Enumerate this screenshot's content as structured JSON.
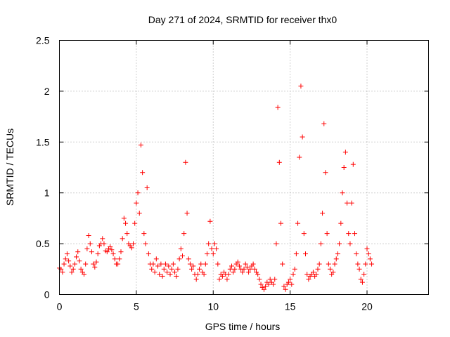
{
  "chart_data": {
    "type": "scatter",
    "title": "Day 271 of 2024, SRMTID for receiver thx0",
    "xlabel": "GPS time / hours",
    "ylabel": "SRMTID / TECUs",
    "xlim": [
      0,
      24
    ],
    "ylim": [
      0,
      2.5
    ],
    "xticks": [
      0,
      5,
      10,
      15,
      20
    ],
    "xtick_labels": [
      "0",
      "5",
      "10",
      "15",
      "20"
    ],
    "yticks": [
      0,
      0.5,
      1,
      1.5,
      2,
      2.5
    ],
    "ytick_labels": [
      "0",
      "0.5",
      "1",
      "1.5",
      "2",
      "2.5"
    ],
    "grid": true,
    "marker": "+",
    "color": "#ff0000",
    "series": [
      {
        "name": "SRMTID",
        "points": [
          [
            0.0,
            0.26
          ],
          [
            0.1,
            0.25
          ],
          [
            0.2,
            0.22
          ],
          [
            0.3,
            0.3
          ],
          [
            0.4,
            0.35
          ],
          [
            0.5,
            0.4
          ],
          [
            0.6,
            0.33
          ],
          [
            0.7,
            0.28
          ],
          [
            0.8,
            0.22
          ],
          [
            0.9,
            0.25
          ],
          [
            1.0,
            0.3
          ],
          [
            1.1,
            0.37
          ],
          [
            1.2,
            0.42
          ],
          [
            1.3,
            0.33
          ],
          [
            1.4,
            0.25
          ],
          [
            1.5,
            0.22
          ],
          [
            1.6,
            0.2
          ],
          [
            1.7,
            0.3
          ],
          [
            1.8,
            0.45
          ],
          [
            1.9,
            0.58
          ],
          [
            2.0,
            0.5
          ],
          [
            2.1,
            0.42
          ],
          [
            2.2,
            0.3
          ],
          [
            2.3,
            0.27
          ],
          [
            2.4,
            0.32
          ],
          [
            2.5,
            0.4
          ],
          [
            2.6,
            0.48
          ],
          [
            2.7,
            0.5
          ],
          [
            2.8,
            0.55
          ],
          [
            2.9,
            0.5
          ],
          [
            3.0,
            0.43
          ],
          [
            3.1,
            0.42
          ],
          [
            3.2,
            0.45
          ],
          [
            3.3,
            0.47
          ],
          [
            3.4,
            0.44
          ],
          [
            3.5,
            0.4
          ],
          [
            3.6,
            0.35
          ],
          [
            3.7,
            0.3
          ],
          [
            3.8,
            0.3
          ],
          [
            3.9,
            0.35
          ],
          [
            4.0,
            0.42
          ],
          [
            4.1,
            0.55
          ],
          [
            4.2,
            0.75
          ],
          [
            4.3,
            0.7
          ],
          [
            4.4,
            0.6
          ],
          [
            4.5,
            0.5
          ],
          [
            4.6,
            0.48
          ],
          [
            4.7,
            0.46
          ],
          [
            4.8,
            0.5
          ],
          [
            4.9,
            0.7
          ],
          [
            5.0,
            0.9
          ],
          [
            5.1,
            1.0
          ],
          [
            5.2,
            0.8
          ],
          [
            5.3,
            1.47
          ],
          [
            5.4,
            1.2
          ],
          [
            5.5,
            0.6
          ],
          [
            5.6,
            0.5
          ],
          [
            5.7,
            1.05
          ],
          [
            5.8,
            0.4
          ],
          [
            5.9,
            0.3
          ],
          [
            6.0,
            0.25
          ],
          [
            6.1,
            0.3
          ],
          [
            6.2,
            0.22
          ],
          [
            6.3,
            0.35
          ],
          [
            6.4,
            0.28
          ],
          [
            6.5,
            0.2
          ],
          [
            6.6,
            0.3
          ],
          [
            6.7,
            0.18
          ],
          [
            6.8,
            0.25
          ],
          [
            6.9,
            0.3
          ],
          [
            7.0,
            0.22
          ],
          [
            7.1,
            0.28
          ],
          [
            7.2,
            0.2
          ],
          [
            7.3,
            0.25
          ],
          [
            7.4,
            0.3
          ],
          [
            7.5,
            0.22
          ],
          [
            7.6,
            0.18
          ],
          [
            7.7,
            0.25
          ],
          [
            7.8,
            0.35
          ],
          [
            7.9,
            0.45
          ],
          [
            8.0,
            0.38
          ],
          [
            8.1,
            0.6
          ],
          [
            8.2,
            1.3
          ],
          [
            8.3,
            0.8
          ],
          [
            8.4,
            0.35
          ],
          [
            8.5,
            0.3
          ],
          [
            8.6,
            0.25
          ],
          [
            8.7,
            0.28
          ],
          [
            8.8,
            0.2
          ],
          [
            8.9,
            0.15
          ],
          [
            9.0,
            0.2
          ],
          [
            9.1,
            0.25
          ],
          [
            9.2,
            0.3
          ],
          [
            9.3,
            0.22
          ],
          [
            9.4,
            0.2
          ],
          [
            9.5,
            0.3
          ],
          [
            9.6,
            0.4
          ],
          [
            9.7,
            0.5
          ],
          [
            9.8,
            0.72
          ],
          [
            9.9,
            0.45
          ],
          [
            10.0,
            0.4
          ],
          [
            10.1,
            0.5
          ],
          [
            10.2,
            0.45
          ],
          [
            10.3,
            0.3
          ],
          [
            10.4,
            0.15
          ],
          [
            10.5,
            0.2
          ],
          [
            10.6,
            0.18
          ],
          [
            10.7,
            0.22
          ],
          [
            10.8,
            0.2
          ],
          [
            10.9,
            0.15
          ],
          [
            11.0,
            0.2
          ],
          [
            11.1,
            0.25
          ],
          [
            11.2,
            0.28
          ],
          [
            11.3,
            0.22
          ],
          [
            11.4,
            0.25
          ],
          [
            11.5,
            0.3
          ],
          [
            11.6,
            0.32
          ],
          [
            11.7,
            0.28
          ],
          [
            11.8,
            0.25
          ],
          [
            11.9,
            0.22
          ],
          [
            12.0,
            0.25
          ],
          [
            12.1,
            0.3
          ],
          [
            12.2,
            0.27
          ],
          [
            12.3,
            0.22
          ],
          [
            12.4,
            0.25
          ],
          [
            12.5,
            0.28
          ],
          [
            12.6,
            0.3
          ],
          [
            12.7,
            0.25
          ],
          [
            12.8,
            0.22
          ],
          [
            12.9,
            0.2
          ],
          [
            13.0,
            0.15
          ],
          [
            13.1,
            0.1
          ],
          [
            13.2,
            0.07
          ],
          [
            13.3,
            0.05
          ],
          [
            13.4,
            0.08
          ],
          [
            13.5,
            0.12
          ],
          [
            13.6,
            0.1
          ],
          [
            13.7,
            0.15
          ],
          [
            13.8,
            0.12
          ],
          [
            13.9,
            0.1
          ],
          [
            14.0,
            0.15
          ],
          [
            14.1,
            0.5
          ],
          [
            14.2,
            1.84
          ],
          [
            14.3,
            1.3
          ],
          [
            14.4,
            0.7
          ],
          [
            14.5,
            0.3
          ],
          [
            14.6,
            0.08
          ],
          [
            14.7,
            0.05
          ],
          [
            14.8,
            0.1
          ],
          [
            14.9,
            0.12
          ],
          [
            15.0,
            0.15
          ],
          [
            15.1,
            0.1
          ],
          [
            15.2,
            0.2
          ],
          [
            15.3,
            0.25
          ],
          [
            15.4,
            0.4
          ],
          [
            15.5,
            0.7
          ],
          [
            15.6,
            1.35
          ],
          [
            15.7,
            2.05
          ],
          [
            15.8,
            1.55
          ],
          [
            15.9,
            0.6
          ],
          [
            16.0,
            0.4
          ],
          [
            16.1,
            0.2
          ],
          [
            16.2,
            0.15
          ],
          [
            16.3,
            0.18
          ],
          [
            16.4,
            0.2
          ],
          [
            16.5,
            0.22
          ],
          [
            16.6,
            0.18
          ],
          [
            16.7,
            0.2
          ],
          [
            16.8,
            0.25
          ],
          [
            16.9,
            0.3
          ],
          [
            17.0,
            0.5
          ],
          [
            17.1,
            0.8
          ],
          [
            17.2,
            1.68
          ],
          [
            17.3,
            1.2
          ],
          [
            17.4,
            0.6
          ],
          [
            17.5,
            0.3
          ],
          [
            17.6,
            0.25
          ],
          [
            17.7,
            0.2
          ],
          [
            17.8,
            0.22
          ],
          [
            17.9,
            0.3
          ],
          [
            18.0,
            0.35
          ],
          [
            18.1,
            0.4
          ],
          [
            18.2,
            0.5
          ],
          [
            18.3,
            0.7
          ],
          [
            18.4,
            1.0
          ],
          [
            18.5,
            1.25
          ],
          [
            18.6,
            1.4
          ],
          [
            18.7,
            0.9
          ],
          [
            18.8,
            0.6
          ],
          [
            18.9,
            0.5
          ],
          [
            19.0,
            0.9
          ],
          [
            19.1,
            1.28
          ],
          [
            19.2,
            0.6
          ],
          [
            19.3,
            0.4
          ],
          [
            19.4,
            0.3
          ],
          [
            19.5,
            0.25
          ],
          [
            19.6,
            0.15
          ],
          [
            19.7,
            0.12
          ],
          [
            19.8,
            0.2
          ],
          [
            19.9,
            0.3
          ],
          [
            20.0,
            0.45
          ],
          [
            20.1,
            0.4
          ],
          [
            20.2,
            0.35
          ],
          [
            20.3,
            0.3
          ]
        ]
      }
    ]
  }
}
